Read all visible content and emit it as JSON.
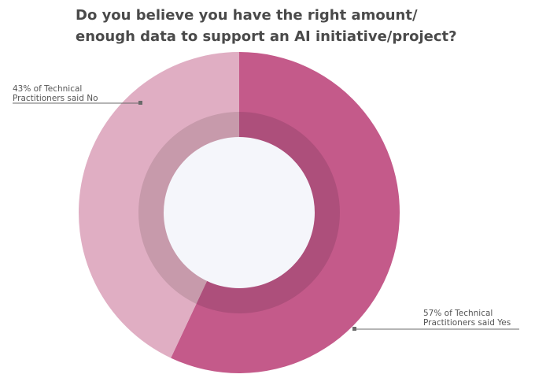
{
  "title_lines": [
    "Do you believe you have the right amount/",
    "enough data to support an AI initiative/project?"
  ],
  "chart_data": {
    "type": "pie",
    "variant": "donut",
    "title": "Do you believe you have the right amount/ enough data to support an AI initiative/project?",
    "categories": [
      "Yes",
      "No"
    ],
    "values": [
      57,
      43
    ],
    "unit": "%",
    "colors": [
      "#c45a8a",
      "#e0aec3"
    ],
    "inner_ring_colors": [
      "#ad4f7b",
      "#c79aab"
    ],
    "center_color": "#f5f6fb",
    "annotations": [
      {
        "slice": "Yes",
        "lines": [
          "57% of Technical",
          "Practitioners said Yes"
        ]
      },
      {
        "slice": "No",
        "lines": [
          "43% of Technical",
          "Practitioners said No"
        ]
      }
    ]
  }
}
